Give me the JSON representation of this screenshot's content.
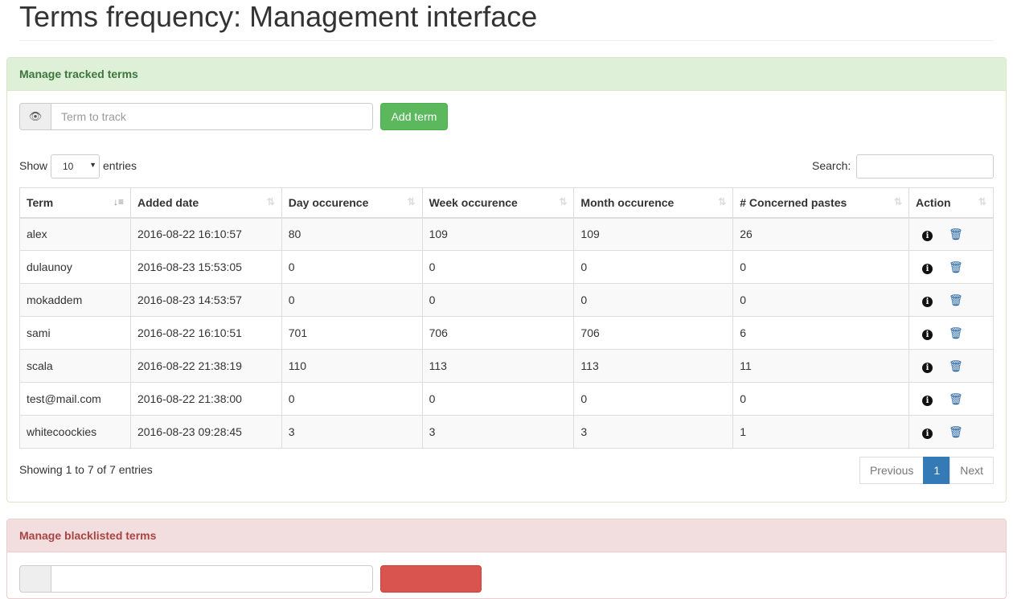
{
  "title": "Terms frequency: Management interface",
  "tracked": {
    "heading": "Manage tracked terms",
    "input_placeholder": "Term to track",
    "add_label": "Add term",
    "show_label": "Show",
    "page_size": "10",
    "entries_label": "entries",
    "search_label": "Search:",
    "columns": [
      "Term",
      "Added date",
      "Day occurence",
      "Week occurence",
      "Month occurence",
      "# Concerned pastes",
      "Action"
    ],
    "rows": [
      [
        "alex",
        "2016-08-22 16:10:57",
        "80",
        "109",
        "109",
        "26"
      ],
      [
        "dulaunoy",
        "2016-08-23 15:53:05",
        "0",
        "0",
        "0",
        "0"
      ],
      [
        "mokaddem",
        "2016-08-23 14:53:57",
        "0",
        "0",
        "0",
        "0"
      ],
      [
        "sami",
        "2016-08-22 16:10:51",
        "701",
        "706",
        "706",
        "6"
      ],
      [
        "scala",
        "2016-08-22 21:38:19",
        "110",
        "113",
        "113",
        "11"
      ],
      [
        "test@mail.com",
        "2016-08-22 21:38:00",
        "0",
        "0",
        "0",
        "0"
      ],
      [
        "whitecoockies",
        "2016-08-23 09:28:45",
        "3",
        "3",
        "3",
        "1"
      ]
    ],
    "summary": "Showing 1 to 7 of 7 entries",
    "pagination": {
      "previous": "Previous",
      "current": "1",
      "next": "Next"
    }
  },
  "blacklist": {
    "heading": "Manage blacklisted terms"
  },
  "colors": {
    "success": "#5cb85c",
    "danger": "#d9534f",
    "primary": "#337ab7"
  }
}
